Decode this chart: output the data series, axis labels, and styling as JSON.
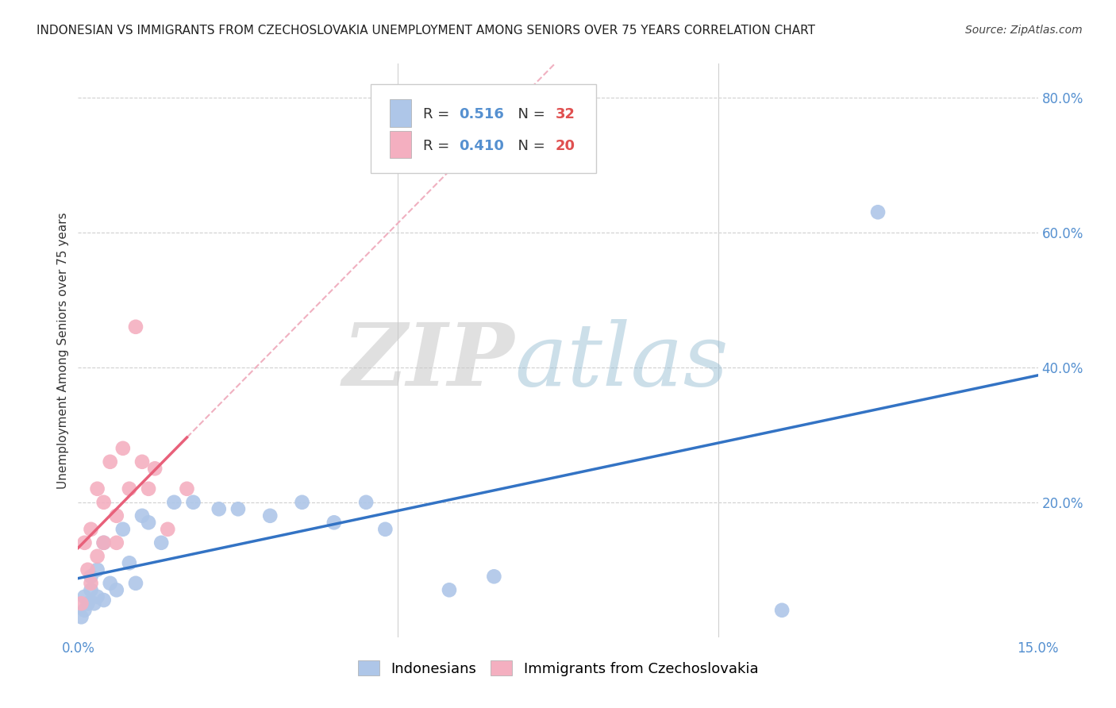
{
  "title": "INDONESIAN VS IMMIGRANTS FROM CZECHOSLOVAKIA UNEMPLOYMENT AMONG SENIORS OVER 75 YEARS CORRELATION CHART",
  "source": "Source: ZipAtlas.com",
  "ylabel": "Unemployment Among Seniors over 75 years",
  "xlim": [
    0.0,
    0.15
  ],
  "ylim": [
    0.0,
    0.85
  ],
  "blue_R": "0.516",
  "blue_N": "32",
  "pink_R": "0.410",
  "pink_N": "20",
  "indo_x": [
    0.0005,
    0.001,
    0.001,
    0.0015,
    0.002,
    0.002,
    0.0025,
    0.003,
    0.003,
    0.004,
    0.004,
    0.005,
    0.006,
    0.007,
    0.008,
    0.009,
    0.01,
    0.011,
    0.013,
    0.015,
    0.018,
    0.022,
    0.025,
    0.03,
    0.035,
    0.04,
    0.045,
    0.048,
    0.058,
    0.065,
    0.125,
    0.11
  ],
  "indo_y": [
    0.03,
    0.04,
    0.06,
    0.05,
    0.07,
    0.09,
    0.05,
    0.06,
    0.1,
    0.055,
    0.14,
    0.08,
    0.07,
    0.16,
    0.11,
    0.08,
    0.18,
    0.17,
    0.14,
    0.2,
    0.2,
    0.19,
    0.19,
    0.18,
    0.2,
    0.17,
    0.2,
    0.16,
    0.07,
    0.09,
    0.63,
    0.04
  ],
  "czech_x": [
    0.0005,
    0.001,
    0.0015,
    0.002,
    0.002,
    0.003,
    0.003,
    0.004,
    0.004,
    0.005,
    0.006,
    0.006,
    0.007,
    0.008,
    0.009,
    0.01,
    0.011,
    0.012,
    0.014,
    0.017
  ],
  "czech_y": [
    0.05,
    0.14,
    0.1,
    0.08,
    0.16,
    0.12,
    0.22,
    0.2,
    0.14,
    0.26,
    0.18,
    0.14,
    0.28,
    0.22,
    0.46,
    0.26,
    0.22,
    0.25,
    0.16,
    0.22
  ],
  "blue_scatter_color": "#aec6e8",
  "pink_scatter_color": "#f4afc0",
  "blue_line_color": "#3373c4",
  "pink_line_color": "#e8607a",
  "pink_dashed_color": "#f0b0c0",
  "background_color": "#ffffff",
  "grid_color": "#d0d0d0",
  "title_fontsize": 11,
  "source_fontsize": 10,
  "tick_fontsize": 12,
  "ylabel_fontsize": 11
}
